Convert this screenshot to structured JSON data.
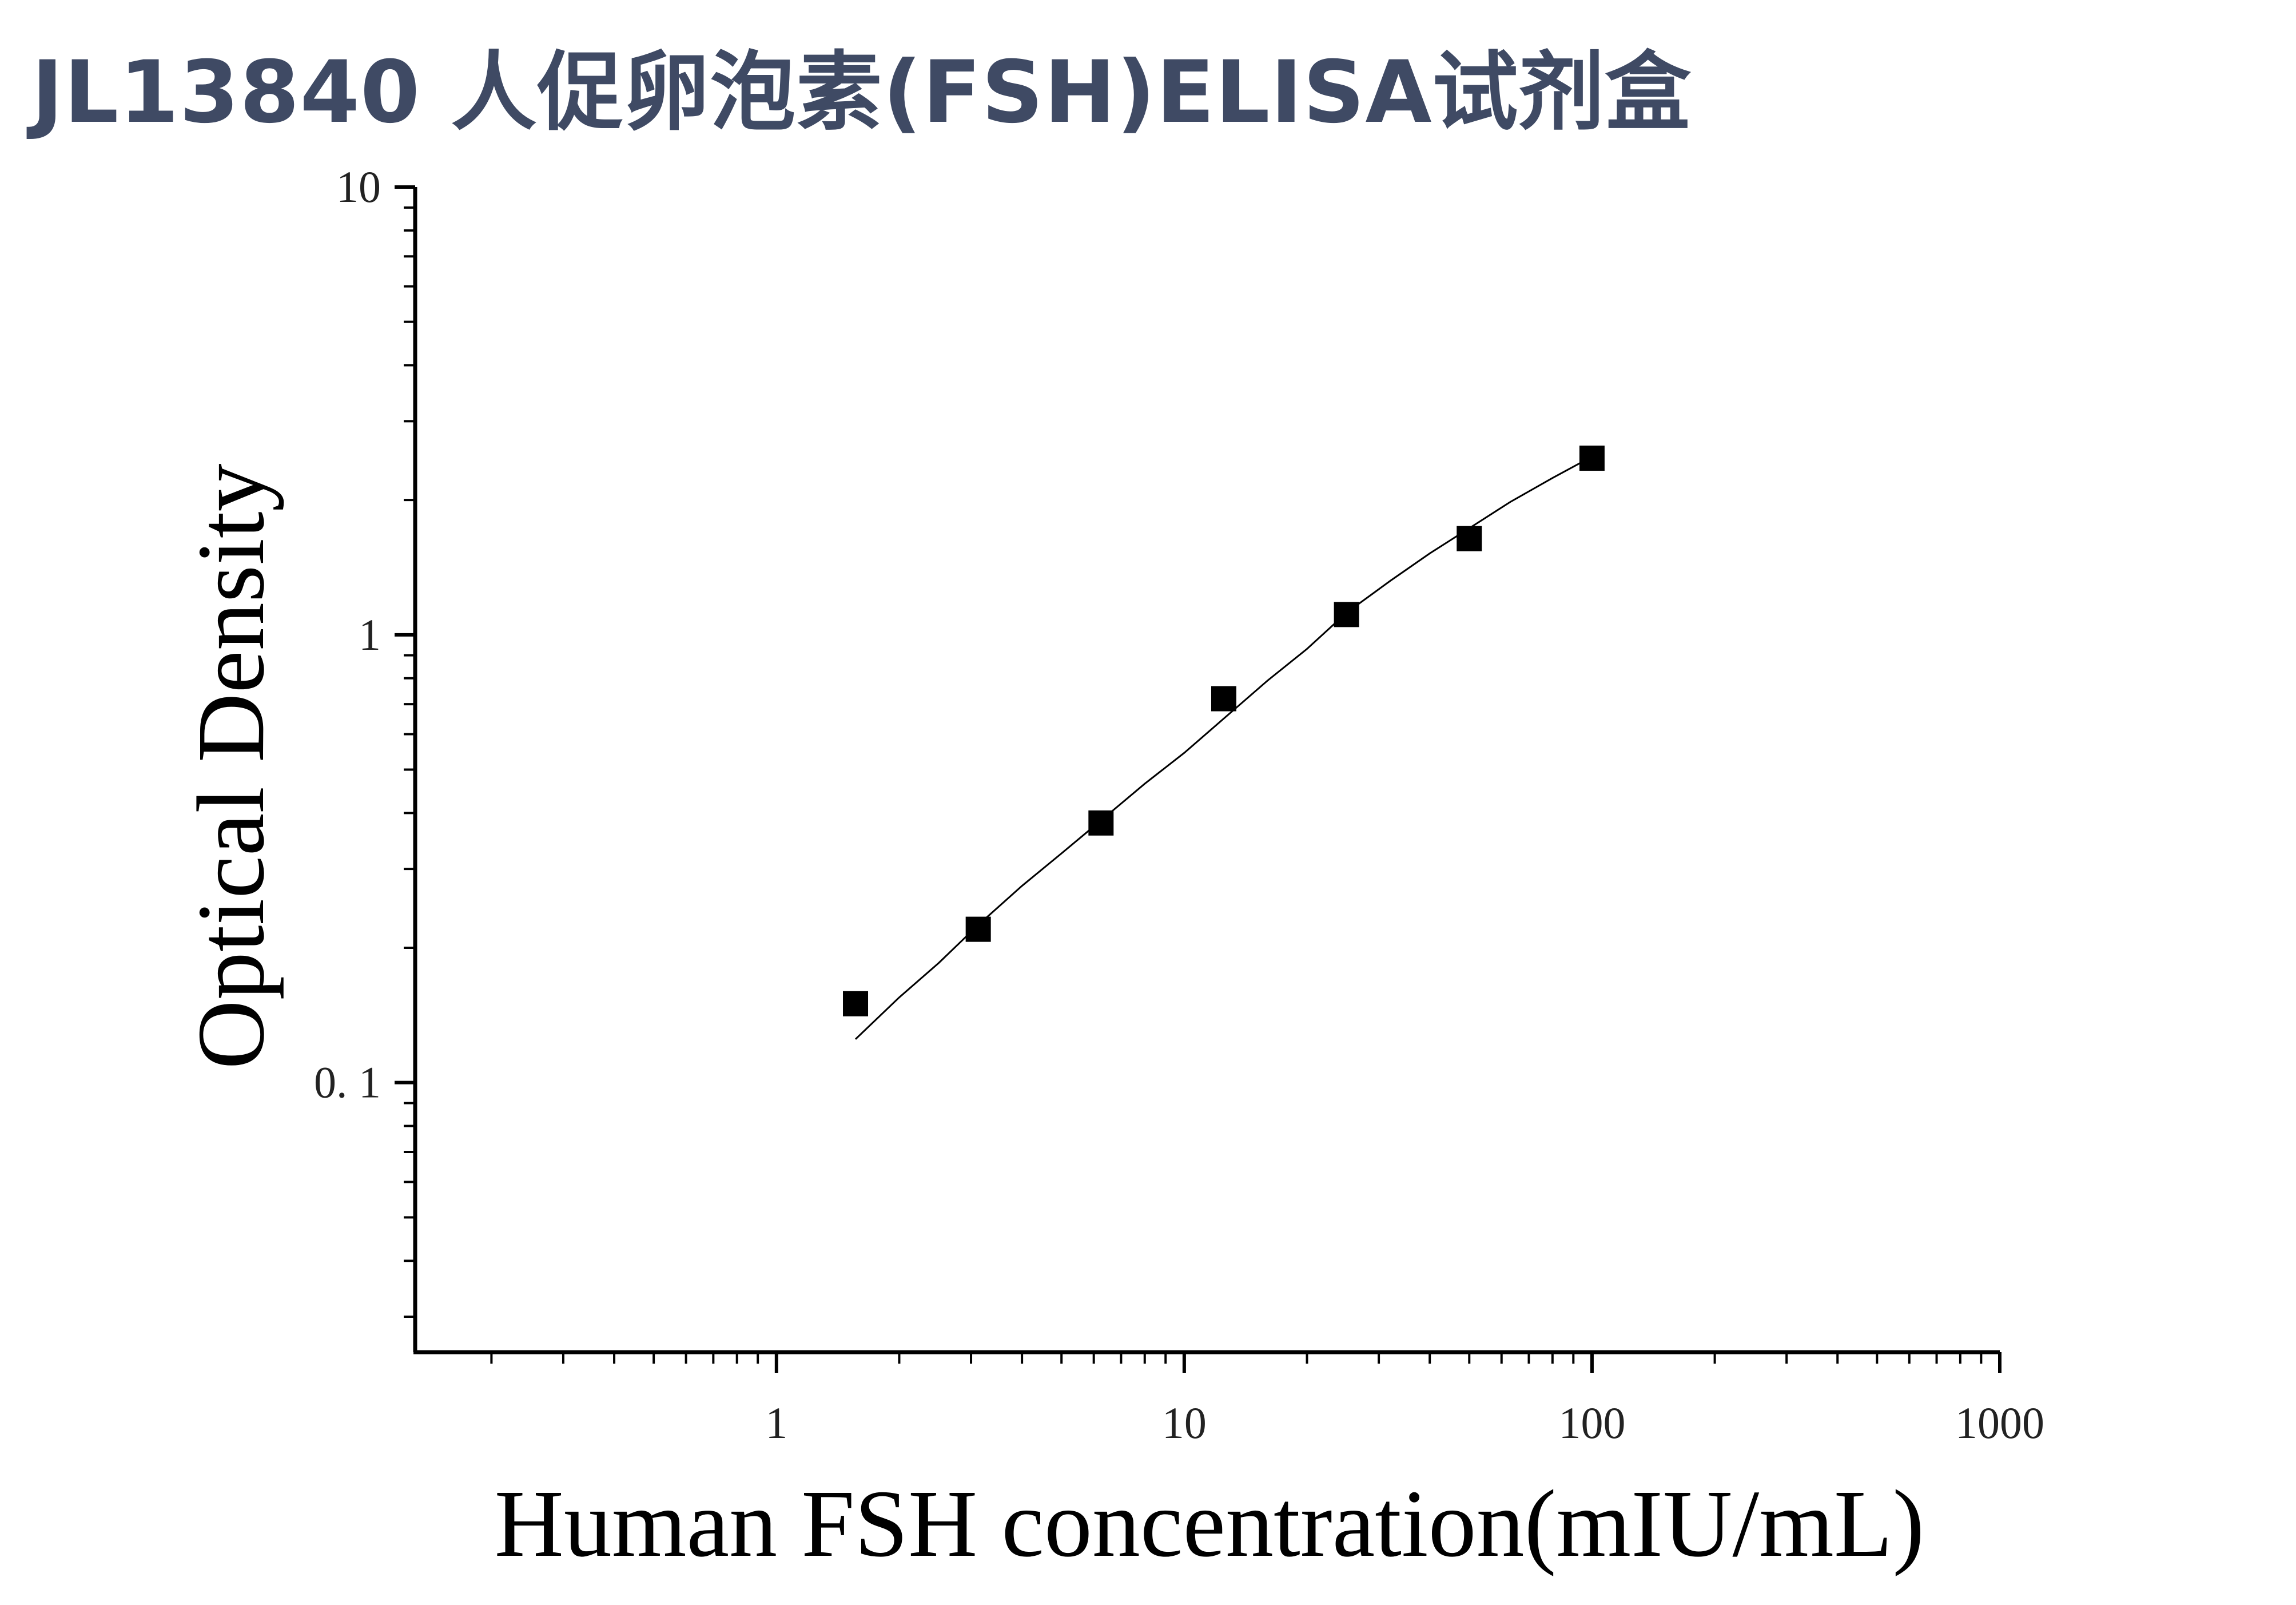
{
  "header": {
    "title": "JL13840 人促卵泡素(FSH)ELISA试剂盒"
  },
  "chart_data": {
    "type": "scatter",
    "title": "JL13840 人促卵泡素(FSH)ELISA试剂盒",
    "xlabel": "Human FSH concentration(mIU/mL)",
    "ylabel": "Optical Density",
    "x_scale": "log",
    "y_scale": "log",
    "xlim": [
      0.13,
      1000
    ],
    "ylim": [
      0.025,
      10
    ],
    "x_ticks": [
      {
        "value": 1,
        "label": "1"
      },
      {
        "value": 10,
        "label": "10"
      },
      {
        "value": 100,
        "label": "100"
      },
      {
        "value": 1000,
        "label": "1000"
      }
    ],
    "y_ticks": [
      {
        "value": 0.1,
        "label": "0. 1"
      },
      {
        "value": 1,
        "label": "1"
      },
      {
        "value": 10,
        "label": "10"
      }
    ],
    "grid": false,
    "series": [
      {
        "marker": "square",
        "color": "#000000",
        "x": [
          1.5625,
          3.125,
          6.25,
          12.5,
          25,
          50,
          100
        ],
        "y": [
          0.15,
          0.22,
          0.38,
          0.72,
          1.11,
          1.64,
          2.48
        ]
      }
    ],
    "fit_curve": {
      "color": "#000000",
      "x_range": [
        1.5625,
        100
      ],
      "points": [
        [
          1.5625,
          0.125
        ],
        [
          2.0,
          0.155
        ],
        [
          2.5,
          0.185
        ],
        [
          3.125,
          0.225
        ],
        [
          4.0,
          0.275
        ],
        [
          5.0,
          0.325
        ],
        [
          6.25,
          0.385
        ],
        [
          8.0,
          0.465
        ],
        [
          10.0,
          0.545
        ],
        [
          12.5,
          0.65
        ],
        [
          16.0,
          0.79
        ],
        [
          20.0,
          0.93
        ],
        [
          25.0,
          1.12
        ],
        [
          32.0,
          1.32
        ],
        [
          40.0,
          1.52
        ],
        [
          50.0,
          1.73
        ],
        [
          63.0,
          1.98
        ],
        [
          80.0,
          2.24
        ],
        [
          100.0,
          2.5
        ]
      ]
    }
  }
}
